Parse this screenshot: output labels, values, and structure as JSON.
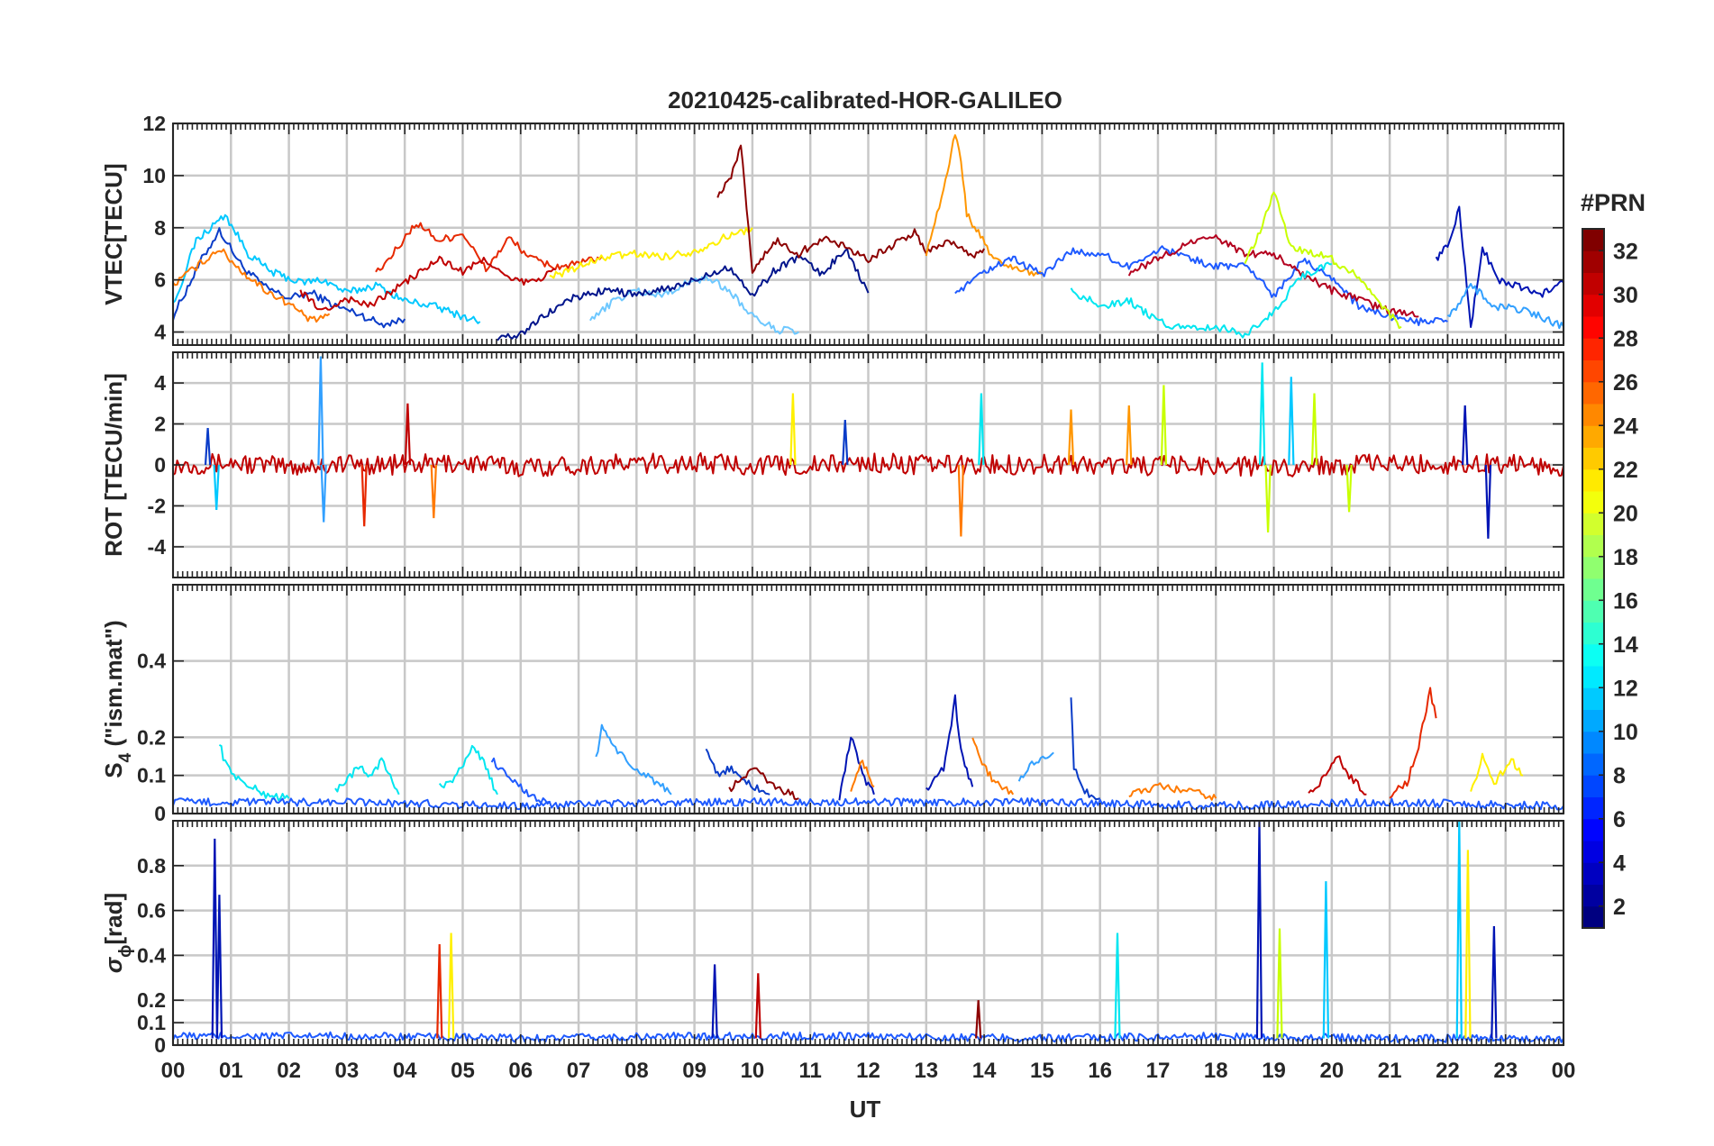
{
  "figure": {
    "title": "20210425-calibrated-HOR-GALILEO",
    "xlabel": "UT",
    "x_tick_labels": [
      "00",
      "01",
      "02",
      "03",
      "04",
      "05",
      "06",
      "07",
      "08",
      "09",
      "10",
      "11",
      "12",
      "13",
      "14",
      "15",
      "16",
      "17",
      "18",
      "19",
      "20",
      "21",
      "22",
      "23",
      "00"
    ]
  },
  "colorbar": {
    "title": "#PRN",
    "tick_labels": [
      "2",
      "4",
      "6",
      "8",
      "10",
      "12",
      "14",
      "16",
      "18",
      "20",
      "22",
      "24",
      "26",
      "28",
      "30",
      "32"
    ],
    "ticks": [
      2,
      4,
      6,
      8,
      10,
      12,
      14,
      16,
      18,
      20,
      22,
      24,
      26,
      28,
      30,
      32
    ],
    "range": [
      1,
      33
    ],
    "colormap": "jet"
  },
  "chart_data": [
    {
      "type": "line",
      "ylabel": "VTEC[TECU]",
      "ylim": [
        3.5,
        12
      ],
      "yticks": [
        4,
        6,
        8,
        10,
        12
      ],
      "xlim": [
        0,
        24
      ],
      "grid": true,
      "series": [
        {
          "color": "#0a3cc8",
          "x": [
            0,
            0.5,
            0.8,
            1.2,
            1.6,
            2.0,
            2.4,
            2.8,
            3.2,
            3.6,
            4.0
          ],
          "y": [
            4.6,
            6.8,
            7.9,
            6.5,
            5.7,
            5.3,
            5.5,
            5.0,
            4.7,
            4.3,
            4.5
          ]
        },
        {
          "color": "#00c8ff",
          "x": [
            0,
            0.4,
            0.9,
            1.3,
            1.7,
            2.2,
            2.6,
            3.0,
            3.5,
            4.0,
            4.5,
            5.0,
            5.3
          ],
          "y": [
            5.0,
            7.5,
            8.5,
            7.0,
            6.3,
            5.9,
            6.0,
            5.5,
            5.8,
            5.2,
            5.0,
            4.6,
            4.4
          ]
        },
        {
          "color": "#ff7a00",
          "x": [
            0,
            0.4,
            0.8,
            1.2,
            1.6,
            2.0,
            2.4,
            2.7
          ],
          "y": [
            5.8,
            6.5,
            7.2,
            6.3,
            5.6,
            5.1,
            4.4,
            4.7
          ]
        },
        {
          "color": "#e62800",
          "x": [
            3.5,
            3.8,
            4.2,
            4.6,
            5.0,
            5.4,
            5.8,
            6.2,
            6.6,
            7.0,
            7.4
          ],
          "y": [
            6.2,
            7.0,
            8.2,
            7.5,
            7.8,
            6.4,
            7.6,
            6.8,
            6.5,
            6.6,
            6.9
          ]
        },
        {
          "color": "#c00000",
          "x": [
            2.2,
            2.6,
            3.0,
            3.4,
            3.8,
            4.2,
            4.6,
            5.0,
            5.4,
            5.8,
            6.2,
            6.6
          ],
          "y": [
            5.5,
            4.8,
            5.3,
            5.0,
            5.6,
            6.2,
            6.8,
            6.3,
            6.8,
            6.0,
            5.9,
            6.4
          ]
        },
        {
          "color": "#fff000",
          "x": [
            6.5,
            7.0,
            7.5,
            8.0,
            8.5,
            9.0,
            9.5,
            10.0
          ],
          "y": [
            6.1,
            6.5,
            6.9,
            7.0,
            6.9,
            7.1,
            7.6,
            8.0
          ]
        },
        {
          "color": "#6ec8ff",
          "x": [
            7.2,
            7.6,
            8.0,
            8.4,
            8.8,
            9.2,
            9.6,
            10.0,
            10.4,
            10.8
          ],
          "y": [
            4.4,
            5.2,
            5.6,
            5.4,
            5.8,
            6.1,
            5.6,
            4.6,
            4.1,
            4.0
          ]
        },
        {
          "color": "#00148c",
          "x": [
            5.6,
            6.0,
            6.4,
            6.8,
            7.2,
            7.6,
            8.0,
            8.4,
            8.8,
            9.2,
            9.6,
            10.0,
            10.4,
            10.8,
            11.2,
            11.6,
            12.0
          ],
          "y": [
            3.7,
            3.9,
            4.6,
            5.2,
            5.5,
            5.6,
            5.4,
            5.6,
            5.8,
            6.2,
            6.5,
            5.4,
            6.4,
            6.9,
            6.2,
            7.2,
            5.5
          ]
        },
        {
          "color": "#8c0000",
          "x": [
            9.4,
            9.6,
            9.7,
            9.8,
            10.0,
            10.4,
            10.8,
            11.2,
            11.6,
            12.0,
            12.4,
            12.8,
            13.0,
            13.4,
            13.8,
            14.0
          ],
          "y": [
            9.3,
            9.8,
            10.4,
            11.3,
            6.3,
            7.5,
            7.0,
            7.6,
            7.3,
            6.8,
            7.3,
            7.8,
            7.1,
            7.5,
            6.9,
            7.2
          ]
        },
        {
          "color": "#ff9600",
          "x": [
            13.0,
            13.3,
            13.5,
            13.6,
            13.7,
            13.9,
            14.2,
            14.6,
            15.0
          ],
          "y": [
            7.0,
            9.5,
            11.6,
            10.6,
            8.5,
            7.8,
            6.7,
            6.4,
            6.2
          ]
        },
        {
          "color": "#1e5aff",
          "x": [
            13.5,
            14.0,
            14.5,
            15.0,
            15.5,
            16.0,
            16.5,
            17.0,
            17.5,
            18.0,
            18.5,
            19.0,
            19.5,
            20.0,
            20.5,
            21.0,
            21.5,
            22.0
          ],
          "y": [
            5.4,
            6.3,
            6.8,
            6.2,
            7.1,
            7.0,
            6.5,
            7.2,
            6.9,
            6.5,
            6.6,
            5.4,
            6.8,
            6.1,
            4.9,
            4.6,
            4.4,
            4.4
          ]
        },
        {
          "color": "#b4001e",
          "x": [
            16.5,
            17.0,
            17.5,
            18.0,
            18.5,
            19.0,
            19.5,
            20.0,
            20.5,
            21.0,
            21.5
          ],
          "y": [
            6.3,
            6.8,
            7.4,
            7.6,
            7.0,
            7.0,
            6.2,
            5.6,
            5.2,
            4.8,
            4.6
          ]
        },
        {
          "color": "#00e6f0",
          "x": [
            15.5,
            16.0,
            16.5,
            17.0,
            17.5,
            18.0,
            18.5,
            19.0,
            19.5,
            20.0
          ],
          "y": [
            5.6,
            5.0,
            5.2,
            4.4,
            4.1,
            4.2,
            3.9,
            4.8,
            6.2,
            6.6
          ]
        },
        {
          "color": "#c8ff00",
          "x": [
            18.5,
            18.8,
            19.0,
            19.3,
            19.6,
            20.0,
            20.4,
            20.8,
            21.2
          ],
          "y": [
            6.6,
            8.0,
            9.5,
            7.2,
            7.1,
            6.8,
            6.2,
            5.1,
            4.2
          ]
        },
        {
          "color": "#0014b4",
          "x": [
            21.8,
            22.0,
            22.2,
            22.4,
            22.6,
            22.9,
            23.2,
            23.6,
            24.0
          ],
          "y": [
            6.8,
            7.3,
            8.7,
            4.2,
            7.2,
            6.0,
            5.8,
            5.4,
            5.9
          ]
        },
        {
          "color": "#32a0ff",
          "x": [
            22.0,
            22.4,
            22.8,
            23.2,
            23.6,
            24.0
          ],
          "y": [
            4.5,
            5.8,
            5.0,
            4.9,
            4.6,
            4.2
          ]
        }
      ]
    },
    {
      "type": "line",
      "ylabel": "ROT [TECU/min]",
      "ylim": [
        -5.5,
        5.5
      ],
      "yticks": [
        -4,
        -2,
        0,
        2,
        4
      ],
      "xlim": [
        0,
        24
      ],
      "grid": true,
      "series": [
        {
          "color": "#c00000",
          "x": [
            0,
            1,
            2,
            3,
            4,
            5,
            6,
            7,
            8,
            9,
            10,
            11,
            12,
            13,
            14,
            15,
            16,
            17,
            18,
            19,
            20,
            21,
            22,
            23,
            24
          ],
          "y": [
            0,
            0.1,
            -0.1,
            0.05,
            0,
            0.1,
            -0.1,
            0,
            0.05,
            0.1,
            0,
            -0.05,
            0.1,
            0,
            0,
            0.05,
            0,
            -0.05,
            0,
            -0.1,
            0,
            0.05,
            0,
            0.1,
            -0.05
          ]
        }
      ],
      "spikes": [
        {
          "x": 0.6,
          "y": 1.8,
          "color": "#0a3cc8"
        },
        {
          "x": 0.75,
          "y": -2.2,
          "color": "#00c8ff"
        },
        {
          "x": 2.55,
          "y": 5.3,
          "color": "#32a0ff"
        },
        {
          "x": 2.6,
          "y": -2.8,
          "color": "#32a0ff"
        },
        {
          "x": 3.3,
          "y": -3.0,
          "color": "#e62800"
        },
        {
          "x": 4.05,
          "y": 3.0,
          "color": "#c00000"
        },
        {
          "x": 4.5,
          "y": -2.6,
          "color": "#ff7a00"
        },
        {
          "x": 10.7,
          "y": 3.5,
          "color": "#fff000"
        },
        {
          "x": 11.6,
          "y": 2.2,
          "color": "#0a3cc8"
        },
        {
          "x": 13.6,
          "y": -3.5,
          "color": "#ff7a00"
        },
        {
          "x": 13.95,
          "y": 3.5,
          "color": "#00e6f0"
        },
        {
          "x": 15.5,
          "y": 2.7,
          "color": "#ff9600"
        },
        {
          "x": 16.5,
          "y": 2.9,
          "color": "#ff9600"
        },
        {
          "x": 17.1,
          "y": 3.9,
          "color": "#c8ff00"
        },
        {
          "x": 18.8,
          "y": 5.0,
          "color": "#00e6f0"
        },
        {
          "x": 18.9,
          "y": -3.3,
          "color": "#c8ff00"
        },
        {
          "x": 19.3,
          "y": 4.3,
          "color": "#00c8ff"
        },
        {
          "x": 19.7,
          "y": 3.5,
          "color": "#c8ff00"
        },
        {
          "x": 20.3,
          "y": -2.3,
          "color": "#c8ff00"
        },
        {
          "x": 22.3,
          "y": 2.9,
          "color": "#0014b4"
        },
        {
          "x": 22.7,
          "y": -3.6,
          "color": "#0014b4"
        }
      ]
    },
    {
      "type": "line",
      "ylabel": "S",
      "ylabel_sub": "4",
      "ylabel_rest": " (\"ism.mat\")",
      "ylim": [
        0,
        0.6
      ],
      "yticks": [
        0,
        0.1,
        0.2,
        0.4
      ],
      "ytick_labels": [
        "0",
        "0.1",
        "0.2",
        "0.4"
      ],
      "xlim": [
        0,
        24
      ],
      "grid": true,
      "series": [
        {
          "color": "#00e6f0",
          "x": [
            0.8,
            0.9,
            1.2,
            1.6,
            2.0
          ],
          "y": [
            0.19,
            0.13,
            0.08,
            0.05,
            0.04
          ]
        },
        {
          "color": "#00e6f0",
          "x": [
            2.8,
            3.2,
            3.4,
            3.6,
            3.9
          ],
          "y": [
            0.06,
            0.12,
            0.1,
            0.14,
            0.05
          ]
        },
        {
          "color": "#00e6f0",
          "x": [
            4.6,
            4.9,
            5.2,
            5.4,
            5.6
          ],
          "y": [
            0.07,
            0.1,
            0.18,
            0.12,
            0.05
          ]
        },
        {
          "color": "#1e5aff",
          "x": [
            5.5,
            5.8,
            6.0,
            6.2,
            6.5
          ],
          "y": [
            0.14,
            0.1,
            0.07,
            0.04,
            0.03
          ]
        },
        {
          "color": "#32a0ff",
          "x": [
            7.3,
            7.4,
            7.6,
            7.9,
            8.2,
            8.6
          ],
          "y": [
            0.14,
            0.23,
            0.18,
            0.12,
            0.1,
            0.05
          ]
        },
        {
          "color": "#0a3cc8",
          "x": [
            9.2,
            9.4,
            9.6,
            9.9,
            10.3
          ],
          "y": [
            0.16,
            0.1,
            0.12,
            0.08,
            0.05
          ]
        },
        {
          "color": "#8c0000",
          "x": [
            9.6,
            10.0,
            10.4,
            10.8
          ],
          "y": [
            0.06,
            0.12,
            0.07,
            0.04
          ]
        },
        {
          "color": "#0014b4",
          "x": [
            11.5,
            11.7,
            11.9,
            12.1
          ],
          "y": [
            0.04,
            0.2,
            0.1,
            0.05
          ]
        },
        {
          "color": "#ff7a00",
          "x": [
            11.7,
            11.9,
            12.1
          ],
          "y": [
            0.05,
            0.14,
            0.07
          ]
        },
        {
          "color": "#0014b4",
          "x": [
            13.0,
            13.3,
            13.5,
            13.6,
            13.8
          ],
          "y": [
            0.06,
            0.12,
            0.3,
            0.16,
            0.07
          ]
        },
        {
          "color": "#ff7a00",
          "x": [
            13.8,
            14.0,
            14.2,
            14.5
          ],
          "y": [
            0.2,
            0.12,
            0.08,
            0.05
          ]
        },
        {
          "color": "#32a0ff",
          "x": [
            14.6,
            14.9,
            15.2
          ],
          "y": [
            0.09,
            0.14,
            0.16
          ]
        },
        {
          "color": "#0a3cc8",
          "x": [
            15.5,
            15.55,
            15.7,
            16.0
          ],
          "y": [
            0.3,
            0.12,
            0.06,
            0.04
          ]
        },
        {
          "color": "#ff7a00",
          "x": [
            16.5,
            17.0,
            17.5,
            18.0
          ],
          "y": [
            0.05,
            0.07,
            0.06,
            0.04
          ]
        },
        {
          "color": "#c00000",
          "x": [
            19.6,
            19.9,
            20.1,
            20.3,
            20.6
          ],
          "y": [
            0.05,
            0.1,
            0.15,
            0.1,
            0.05
          ]
        },
        {
          "color": "#e62800",
          "x": [
            21.0,
            21.3,
            21.5,
            21.7,
            21.8
          ],
          "y": [
            0.05,
            0.08,
            0.18,
            0.32,
            0.25
          ]
        },
        {
          "color": "#fff000",
          "x": [
            22.4,
            22.6,
            22.8,
            23.1,
            23.3
          ],
          "y": [
            0.05,
            0.15,
            0.08,
            0.14,
            0.1
          ]
        },
        {
          "color": "#1e5aff",
          "x": [
            0,
            3,
            6,
            9,
            12,
            15,
            18,
            21,
            24
          ],
          "y": [
            0.03,
            0.03,
            0.02,
            0.03,
            0.03,
            0.03,
            0.02,
            0.03,
            0.02
          ]
        }
      ]
    },
    {
      "type": "line",
      "ylabel": "σ",
      "ylabel_sub": "ϕ",
      "ylabel_rest": "[rad]",
      "ylim": [
        0,
        1
      ],
      "yticks": [
        0,
        0.1,
        0.2,
        0.4,
        0.6,
        0.8
      ],
      "ytick_labels": [
        "0",
        "0.1",
        "0.2",
        "0.4",
        "0.6",
        "0.8"
      ],
      "xlim": [
        0,
        24
      ],
      "grid": true,
      "series": [
        {
          "color": "#1e5aff",
          "x": [
            0,
            3,
            6,
            9,
            12,
            15,
            18,
            21,
            24
          ],
          "y": [
            0.04,
            0.04,
            0.03,
            0.04,
            0.04,
            0.03,
            0.04,
            0.03,
            0.03
          ]
        }
      ],
      "spikes": [
        {
          "x": 0.72,
          "y": 0.92,
          "color": "#0014b4"
        },
        {
          "x": 0.8,
          "y": 0.67,
          "color": "#0014b4"
        },
        {
          "x": 4.6,
          "y": 0.45,
          "color": "#e62800"
        },
        {
          "x": 4.8,
          "y": 0.5,
          "color": "#fff000"
        },
        {
          "x": 9.35,
          "y": 0.36,
          "color": "#0014b4"
        },
        {
          "x": 10.1,
          "y": 0.32,
          "color": "#c00000"
        },
        {
          "x": 13.9,
          "y": 0.2,
          "color": "#8c0000"
        },
        {
          "x": 16.3,
          "y": 0.5,
          "color": "#00e6f0"
        },
        {
          "x": 18.75,
          "y": 1.0,
          "color": "#0014b4"
        },
        {
          "x": 19.1,
          "y": 0.52,
          "color": "#c8ff00"
        },
        {
          "x": 19.9,
          "y": 0.73,
          "color": "#00c8ff"
        },
        {
          "x": 22.2,
          "y": 1.0,
          "color": "#00c8ff"
        },
        {
          "x": 22.35,
          "y": 0.87,
          "color": "#fff000"
        },
        {
          "x": 22.8,
          "y": 0.53,
          "color": "#0014b4"
        }
      ]
    }
  ]
}
